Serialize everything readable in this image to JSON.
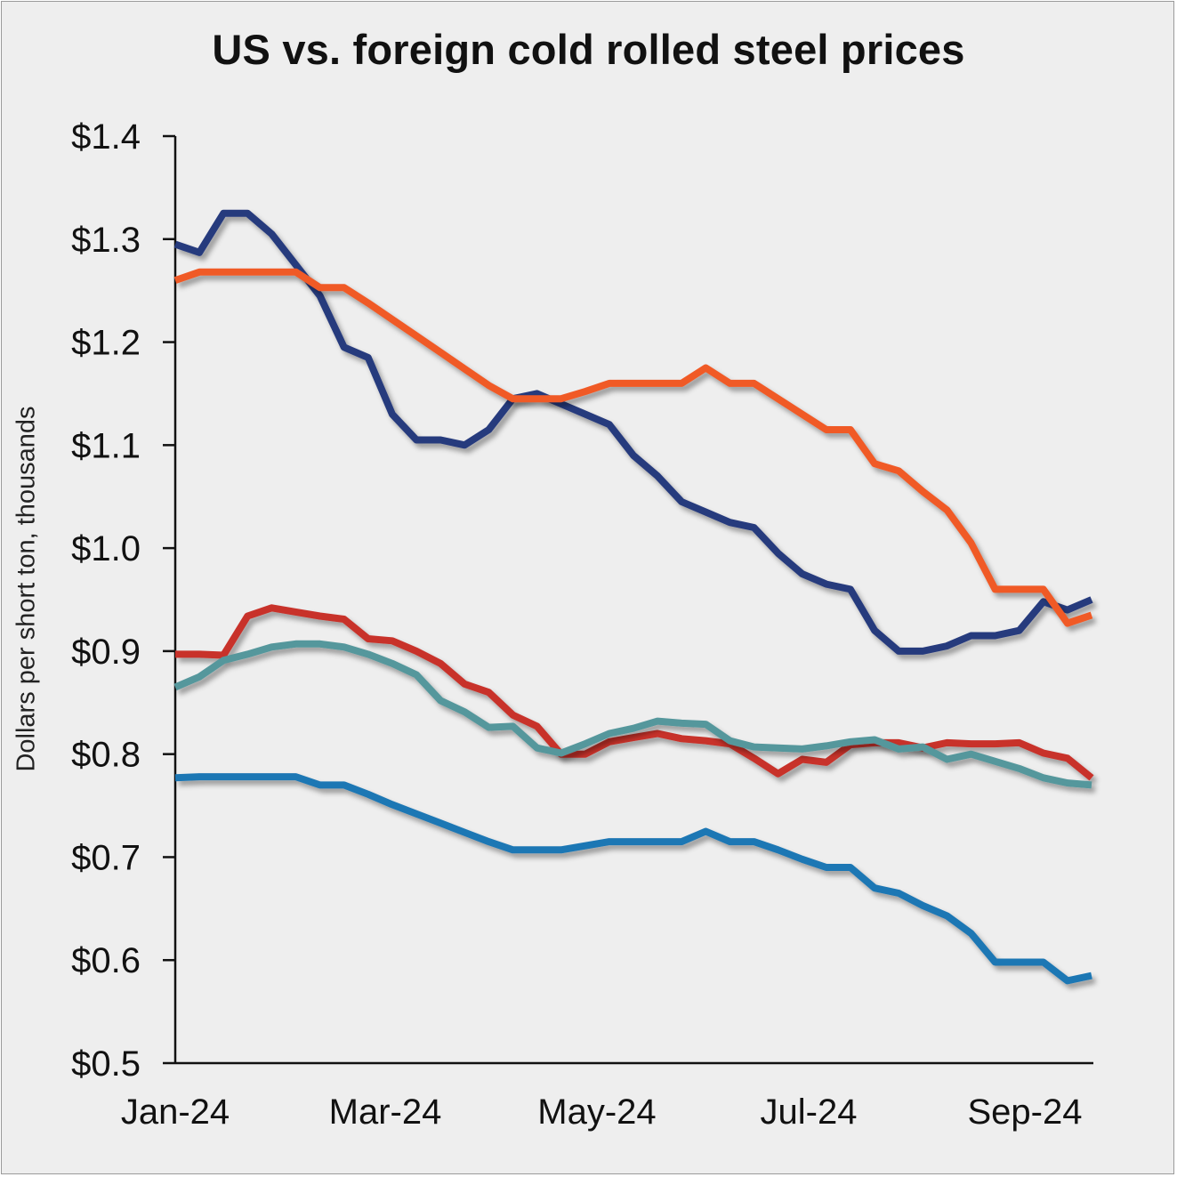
{
  "chart_data": {
    "type": "line",
    "title": "US vs. foreign cold rolled steel prices",
    "xlabel": "",
    "ylabel": "Dollars per short ton, thousands",
    "ylim": [
      0.5,
      1.4
    ],
    "yticks": [
      "$0.5",
      "$0.6",
      "$0.7",
      "$0.8",
      "$0.9",
      "$1.0",
      "$1.1",
      "$1.2",
      "$1.3",
      "$1.4"
    ],
    "xticks": [
      "Jan-24",
      "Mar-24",
      "May-24",
      "Jul-24",
      "Sep-24"
    ],
    "grid": false,
    "legend": "none",
    "x": [
      "Jan-24",
      "Jan-24",
      "Jan-24",
      "Jan-24",
      "Feb-24",
      "Feb-24",
      "Feb-24",
      "Feb-24",
      "Mar-24",
      "Mar-24",
      "Mar-24",
      "Mar-24",
      "Mar-24",
      "Apr-24",
      "Apr-24",
      "Apr-24",
      "Apr-24",
      "May-24",
      "May-24",
      "May-24",
      "May-24",
      "Jun-24",
      "Jun-24",
      "Jun-24",
      "Jun-24",
      "Jun-24",
      "Jul-24",
      "Jul-24",
      "Jul-24",
      "Jul-24",
      "Aug-24",
      "Aug-24",
      "Aug-24",
      "Aug-24",
      "Sep-24",
      "Sep-24",
      "Sep-24",
      "Sep-24",
      "Oct-24"
    ],
    "series": [
      {
        "color": "#283a7d",
        "values": [
          1.295,
          1.287,
          1.325,
          1.325,
          1.305,
          1.275,
          1.245,
          1.195,
          1.185,
          1.13,
          1.105,
          1.105,
          1.1,
          1.115,
          1.145,
          1.15,
          1.14,
          1.13,
          1.12,
          1.09,
          1.07,
          1.045,
          1.035,
          1.025,
          1.02,
          0.995,
          0.975,
          0.965,
          0.96,
          0.92,
          0.9,
          0.9,
          0.905,
          0.915,
          0.915,
          0.92,
          0.948,
          0.94,
          0.95
        ]
      },
      {
        "color": "#f05a28",
        "values": [
          1.26,
          1.268,
          1.268,
          1.268,
          1.268,
          1.268,
          1.253,
          1.253,
          1.238,
          1.222,
          1.206,
          1.19,
          1.174,
          1.158,
          1.145,
          1.145,
          1.145,
          1.152,
          1.16,
          1.16,
          1.16,
          1.16,
          1.175,
          1.16,
          1.16,
          1.145,
          1.13,
          1.115,
          1.115,
          1.082,
          1.075,
          1.055,
          1.037,
          1.005,
          0.96,
          0.96,
          0.96,
          0.927,
          0.935
        ]
      },
      {
        "color": "#c8322b",
        "values": [
          0.897,
          0.897,
          0.896,
          0.934,
          0.942,
          0.938,
          0.934,
          0.931,
          0.912,
          0.91,
          0.9,
          0.888,
          0.868,
          0.86,
          0.838,
          0.827,
          0.8,
          0.8,
          0.812,
          0.816,
          0.82,
          0.815,
          0.813,
          0.81,
          0.796,
          0.781,
          0.795,
          0.792,
          0.809,
          0.811,
          0.811,
          0.806,
          0.811,
          0.81,
          0.81,
          0.811,
          0.801,
          0.796,
          0.777
        ]
      },
      {
        "color": "#55979c",
        "values": [
          0.865,
          0.875,
          0.891,
          0.897,
          0.904,
          0.907,
          0.907,
          0.904,
          0.897,
          0.888,
          0.877,
          0.852,
          0.841,
          0.826,
          0.827,
          0.806,
          0.801,
          0.81,
          0.82,
          0.825,
          0.832,
          0.83,
          0.829,
          0.813,
          0.807,
          0.806,
          0.805,
          0.808,
          0.812,
          0.814,
          0.805,
          0.807,
          0.795,
          0.8,
          0.793,
          0.786,
          0.777,
          0.772,
          0.77
        ]
      },
      {
        "color": "#1f77b4",
        "values": [
          0.777,
          0.778,
          0.778,
          0.778,
          0.778,
          0.778,
          0.77,
          0.77,
          0.761,
          0.751,
          0.742,
          0.733,
          0.724,
          0.715,
          0.707,
          0.707,
          0.707,
          0.711,
          0.715,
          0.715,
          0.715,
          0.715,
          0.725,
          0.715,
          0.715,
          0.707,
          0.698,
          0.69,
          0.69,
          0.67,
          0.665,
          0.653,
          0.643,
          0.626,
          0.598,
          0.598,
          0.598,
          0.58,
          0.585
        ]
      }
    ]
  }
}
